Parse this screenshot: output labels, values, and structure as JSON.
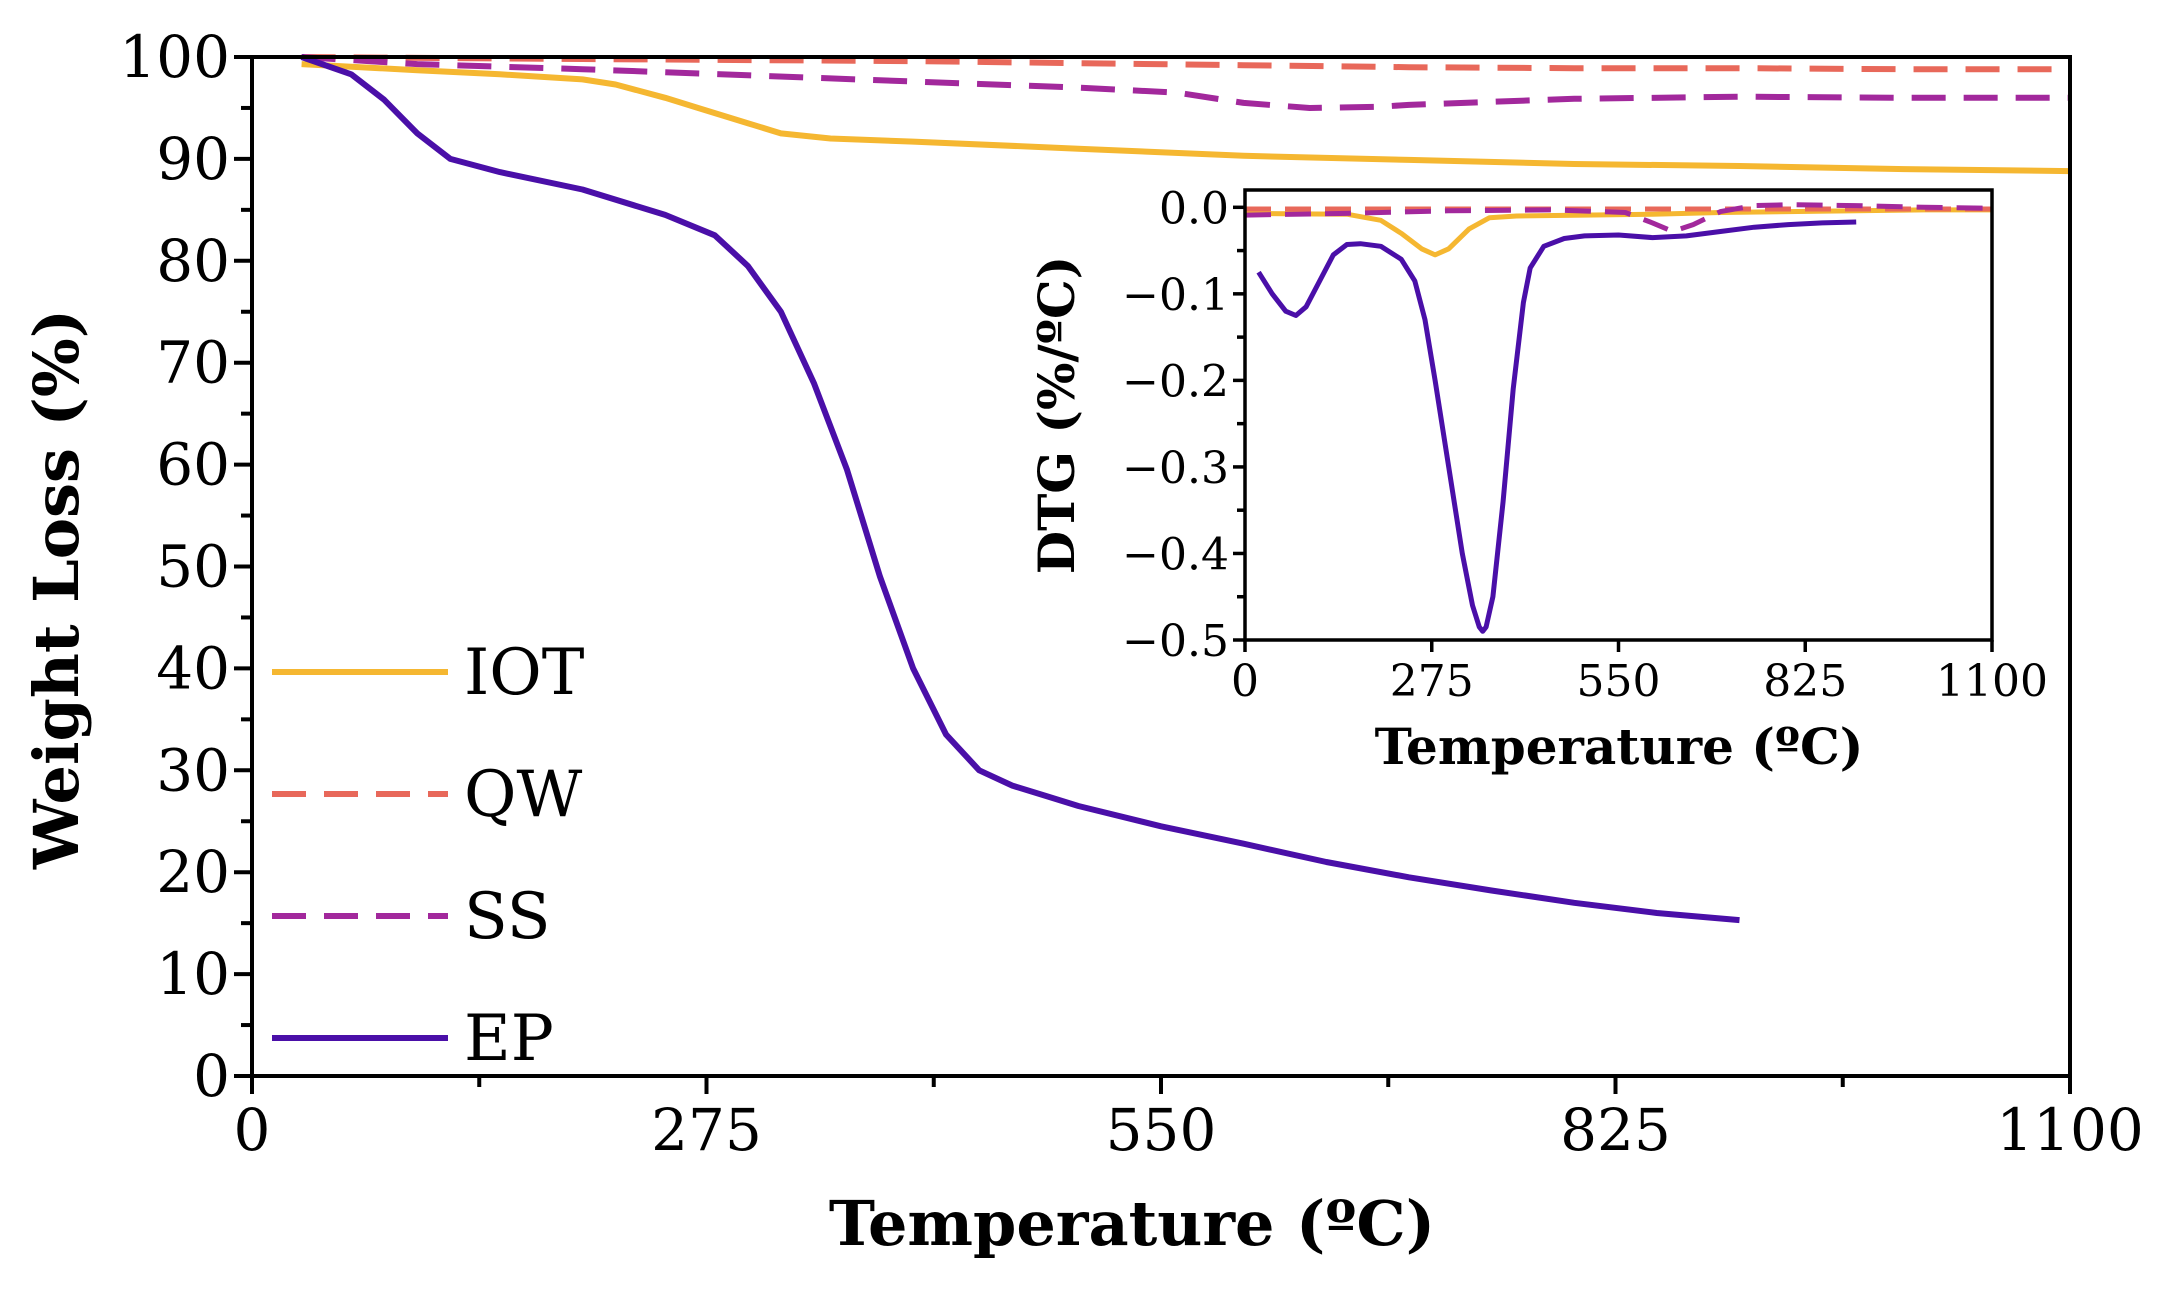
{
  "colors": {
    "IOT": "#f5b731",
    "QW": "#e8685a",
    "SS": "#a2289c",
    "EP": "#4a0fa8",
    "axis": "#000000"
  },
  "chart_data": [
    {
      "id": "main",
      "type": "line",
      "title": "",
      "xlabel": "Temperature (ºC)",
      "ylabel": "Weight Loss (%)",
      "xlim": [
        0,
        1100
      ],
      "ylim": [
        0,
        100
      ],
      "xticks": [
        0,
        275,
        550,
        825,
        1100
      ],
      "xtick_labels": [
        "0",
        "275",
        "550",
        "825",
        "1100"
      ],
      "yticks": [
        0,
        10,
        20,
        30,
        40,
        50,
        60,
        70,
        80,
        90,
        100
      ],
      "ytick_labels": [
        "0",
        "10",
        "20",
        "30",
        "40",
        "50",
        "60",
        "70",
        "80",
        "90",
        "100"
      ],
      "legend": {
        "placement": "lower-left",
        "entries": [
          {
            "name": "IOT",
            "style": "solid"
          },
          {
            "name": "QW",
            "style": "dashed"
          },
          {
            "name": "SS",
            "style": "dashed"
          },
          {
            "name": "EP",
            "style": "solid"
          }
        ]
      },
      "series": [
        {
          "name": "IOT",
          "style": "solid",
          "x": [
            30,
            100,
            150,
            200,
            220,
            250,
            270,
            300,
            320,
            350,
            400,
            500,
            600,
            700,
            800,
            900,
            1000,
            1100
          ],
          "y": [
            99.3,
            98.7,
            98.3,
            97.8,
            97.3,
            96.0,
            95.0,
            93.5,
            92.5,
            92.0,
            91.7,
            91.0,
            90.3,
            89.9,
            89.5,
            89.3,
            89.0,
            88.8
          ]
        },
        {
          "name": "QW",
          "style": "dashed",
          "x": [
            30,
            200,
            400,
            600,
            700,
            800,
            900,
            1000,
            1100
          ],
          "y": [
            100,
            99.8,
            99.6,
            99.2,
            99.0,
            98.9,
            98.9,
            98.8,
            98.8
          ]
        },
        {
          "name": "SS",
          "style": "dashed",
          "x": [
            30,
            100,
            200,
            300,
            400,
            500,
            560,
            600,
            640,
            680,
            700,
            750,
            800,
            900,
            1000,
            1100
          ],
          "y": [
            100,
            99.3,
            98.8,
            98.2,
            97.6,
            97.0,
            96.5,
            95.5,
            95.0,
            95.1,
            95.3,
            95.6,
            95.9,
            96.1,
            96.0,
            96.0
          ]
        },
        {
          "name": "EP",
          "style": "solid",
          "x": [
            30,
            60,
            80,
            100,
            120,
            150,
            200,
            250,
            280,
            300,
            320,
            340,
            360,
            380,
            400,
            420,
            440,
            460,
            480,
            500,
            550,
            600,
            650,
            700,
            750,
            800,
            850,
            900
          ],
          "y": [
            100,
            98.3,
            95.8,
            92.5,
            90.0,
            88.7,
            87.0,
            84.5,
            82.5,
            79.5,
            75.0,
            68.0,
            59.5,
            49.0,
            40.0,
            33.5,
            30.0,
            28.5,
            27.5,
            26.5,
            24.5,
            22.8,
            21.0,
            19.5,
            18.2,
            17.0,
            16.0,
            15.3
          ]
        }
      ]
    },
    {
      "id": "inset",
      "type": "line",
      "title": "",
      "xlabel": "Temperature (ºC)",
      "ylabel": "DTG (%/ºC)",
      "xlim": [
        0,
        1100
      ],
      "ylim": [
        -0.5,
        0.02
      ],
      "xticks": [
        0,
        275,
        550,
        825,
        1100
      ],
      "xtick_labels": [
        "0",
        "275",
        "550",
        "825",
        "1100"
      ],
      "yticks": [
        0,
        -0.1,
        -0.2,
        -0.3,
        -0.4,
        -0.5
      ],
      "ytick_labels": [
        "0.0",
        "−0.1",
        "−0.2",
        "−0.3",
        "−0.4",
        "−0.5"
      ],
      "series": [
        {
          "name": "IOT",
          "style": "solid",
          "x": [
            0,
            150,
            200,
            230,
            260,
            280,
            300,
            330,
            360,
            400,
            500,
            600,
            700,
            800,
            900,
            1000,
            1100
          ],
          "y": [
            -0.007,
            -0.008,
            -0.015,
            -0.03,
            -0.048,
            -0.055,
            -0.048,
            -0.025,
            -0.012,
            -0.01,
            -0.009,
            -0.008,
            -0.006,
            -0.005,
            -0.004,
            -0.003,
            -0.003
          ]
        },
        {
          "name": "QW",
          "style": "dashed",
          "x": [
            0,
            200,
            400,
            600,
            800,
            1000,
            1100
          ],
          "y": [
            -0.002,
            -0.002,
            -0.002,
            -0.002,
            -0.002,
            -0.002,
            -0.002
          ]
        },
        {
          "name": "SS",
          "style": "dashed",
          "x": [
            0,
            150,
            300,
            450,
            560,
            600,
            630,
            660,
            700,
            750,
            800,
            900,
            1000,
            1100
          ],
          "y": [
            -0.009,
            -0.007,
            -0.004,
            -0.003,
            -0.006,
            -0.018,
            -0.028,
            -0.02,
            -0.005,
            0.002,
            0.003,
            0.002,
            0.0,
            -0.001
          ]
        },
        {
          "name": "EP",
          "style": "solid",
          "x": [
            20,
            40,
            60,
            75,
            90,
            110,
            130,
            150,
            170,
            200,
            230,
            250,
            265,
            280,
            300,
            320,
            335,
            345,
            350,
            355,
            365,
            380,
            395,
            410,
            420,
            440,
            470,
            500,
            550,
            600,
            650,
            700,
            750,
            800,
            850,
            900
          ],
          "y": [
            -0.075,
            -0.1,
            -0.12,
            -0.125,
            -0.115,
            -0.085,
            -0.055,
            -0.043,
            -0.042,
            -0.045,
            -0.06,
            -0.085,
            -0.13,
            -0.2,
            -0.3,
            -0.4,
            -0.46,
            -0.485,
            -0.49,
            -0.485,
            -0.45,
            -0.34,
            -0.21,
            -0.11,
            -0.07,
            -0.045,
            -0.036,
            -0.033,
            -0.032,
            -0.035,
            -0.033,
            -0.028,
            -0.023,
            -0.02,
            -0.018,
            -0.017
          ]
        }
      ]
    }
  ]
}
